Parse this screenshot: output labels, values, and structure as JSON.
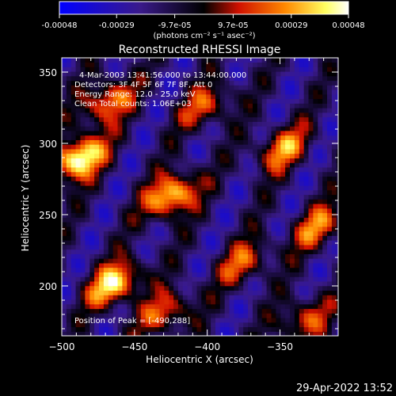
{
  "chart_data": [
    {
      "type": "colorbar",
      "ticks": [
        "-0.00048",
        "-0.00029",
        "-9.7e-05",
        "9.7e-05",
        "0.00029",
        "0.00048"
      ],
      "tick_values": [
        -0.00048,
        -0.00029,
        -9.7e-05,
        9.7e-05,
        0.00029,
        0.00048
      ],
      "range": [
        -0.00048,
        0.00048
      ],
      "unit_label": "(photons cm⁻² s⁻¹ asec⁻²)",
      "colors": [
        "#0000ff",
        "#3a1a8a",
        "#000000",
        "#d01000",
        "#ff8800",
        "#ffff60",
        "#ffffff"
      ]
    },
    {
      "type": "heatmap",
      "title": "Reconstructed RHESSI Image",
      "xlabel": "Heliocentric X (arcsec)",
      "ylabel": "Heliocentric Y (arcsec)",
      "xlim": [
        -500,
        -310
      ],
      "ylim": [
        165,
        360
      ],
      "xticks": [
        -500,
        -450,
        -400,
        -350
      ],
      "yticks": [
        200,
        250,
        300,
        350
      ],
      "info_lines": [
        "4-Mar-2003 13:41:56.000 to 13:44:00.000",
        "Detectors: 3F 4F 5F 6F 7F 8F, Att 0",
        "Energy Range: 12.0 - 25.0 keV",
        "Clean    Total counts: 1.06E+03"
      ],
      "peak_label": "Position of Peak = [-490,288]",
      "peak": [
        -490,
        288
      ],
      "sources": [
        {
          "x": -490,
          "y": 288,
          "amp": 1.0
        },
        {
          "x": -426,
          "y": 262,
          "amp": 0.85
        },
        {
          "x": -465,
          "y": 200,
          "amp": 0.85
        },
        {
          "x": -470,
          "y": 328,
          "amp": 0.65
        },
        {
          "x": -402,
          "y": 325,
          "amp": 0.5
        },
        {
          "x": -350,
          "y": 295,
          "amp": 0.6
        },
        {
          "x": -325,
          "y": 240,
          "amp": 0.55
        },
        {
          "x": -376,
          "y": 215,
          "amp": 0.5
        },
        {
          "x": -335,
          "y": 175,
          "amp": 0.5
        },
        {
          "x": -430,
          "y": 180,
          "amp": 0.55
        }
      ]
    }
  ],
  "footer_timestamp": "29-Apr-2022 13:52"
}
